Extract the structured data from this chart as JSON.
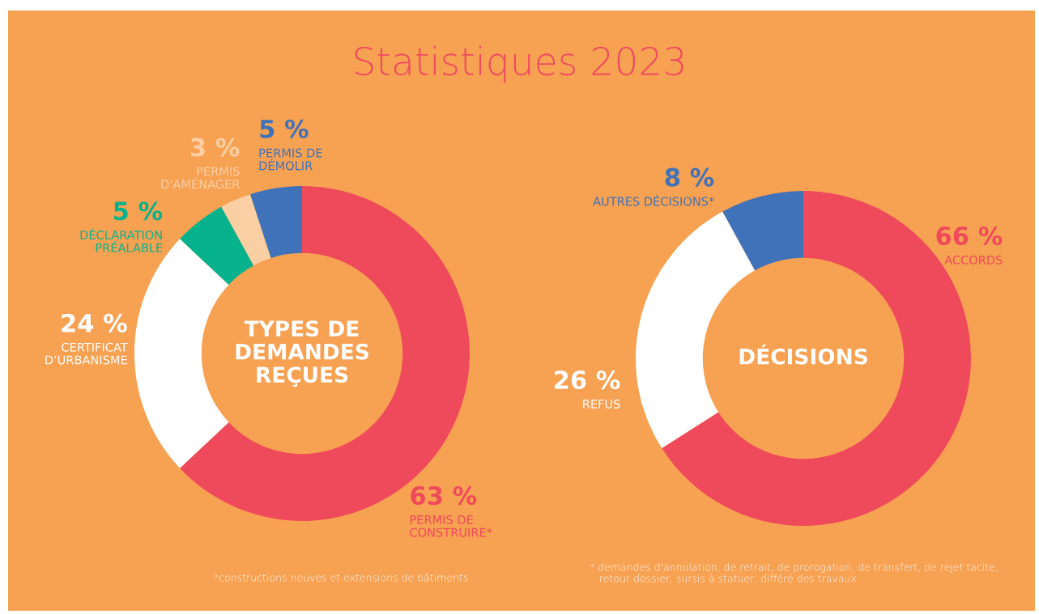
{
  "chart_data": [
    {
      "type": "donut",
      "title": "TYPES DE\nDEMANDES\nREÇUES",
      "categories": [
        "PERMIS DE\nCONSTRUIRE*",
        "CERTIFICAT\nD’URBANISME",
        "DÉCLARATION\nPRÉALABLE",
        "PERMIS\nD'AMÉNAGER",
        "PERMIS DE\nDÉMOLIR"
      ],
      "values": [
        63,
        24,
        5,
        3,
        5
      ],
      "value_labels": [
        "63 %",
        "24 %",
        "5 %",
        "3 %",
        "5 %"
      ],
      "colors": [
        "#ef4a5b",
        "#ffffff",
        "#06b28c",
        "#fbcfa4",
        "#3f72b8"
      ],
      "annotations": [
        "Statistiques 2023",
        "*constructions neuves et extensions de bâtiments"
      ]
    },
    {
      "type": "donut",
      "title": "DÉCISIONS",
      "categories": [
        "ACCORDS",
        "REFUS",
        "AUTRES DÉCISIONS*"
      ],
      "values": [
        66,
        26,
        8
      ],
      "value_labels": [
        "66 %",
        "26 %",
        "8 %"
      ],
      "colors": [
        "#ef4a5b",
        "#ffffff",
        "#3f72b8"
      ],
      "annotations": [
        "* demandes d'annulation, de retrait, de prorogation, de transfert, de rejet tacite,\n   retour dossier, sursis à statuer, différé des travaux"
      ]
    }
  ]
}
